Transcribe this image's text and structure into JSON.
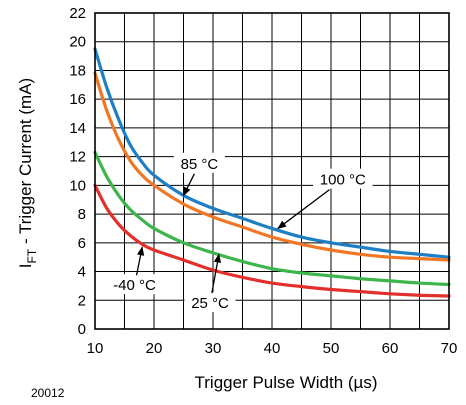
{
  "figure_id": "20012",
  "chart_data": {
    "type": "line",
    "xlabel": "Trigger Pulse Width (µs)",
    "ylabel_main": "I",
    "ylabel_sub": "FT",
    "ylabel_rest": " - Trigger Current (mA)",
    "xlim": [
      10,
      70
    ],
    "ylim": [
      0,
      22
    ],
    "x_ticks": [
      10,
      20,
      30,
      40,
      50,
      60,
      70
    ],
    "y_ticks": [
      0,
      2,
      4,
      6,
      8,
      10,
      12,
      14,
      16,
      18,
      20,
      22
    ],
    "grid": true,
    "series": [
      {
        "color": "#1f7fc4",
        "x": [
          10,
          12,
          14,
          16,
          18,
          20,
          25,
          30,
          35,
          40,
          45,
          50,
          55,
          60,
          65,
          70
        ],
        "y": [
          19.5,
          16.8,
          14.6,
          12.8,
          11.6,
          10.7,
          9.3,
          8.4,
          7.7,
          7.0,
          6.4,
          6.0,
          5.7,
          5.4,
          5.2,
          5.0
        ]
      },
      {
        "color": "#f07824",
        "x": [
          10,
          12,
          14,
          16,
          18,
          20,
          25,
          30,
          35,
          40,
          45,
          50,
          55,
          60,
          65,
          70
        ],
        "y": [
          17.8,
          15.2,
          13.2,
          11.7,
          10.7,
          10.0,
          8.7,
          7.8,
          7.1,
          6.4,
          5.9,
          5.5,
          5.2,
          5.0,
          4.9,
          4.8
        ]
      },
      {
        "color": "#3cb54a",
        "x": [
          10,
          12,
          14,
          16,
          18,
          20,
          25,
          30,
          35,
          40,
          45,
          50,
          55,
          60,
          65,
          70
        ],
        "y": [
          12.3,
          10.6,
          9.3,
          8.3,
          7.6,
          7.0,
          6.0,
          5.3,
          4.7,
          4.2,
          3.9,
          3.7,
          3.5,
          3.35,
          3.2,
          3.1
        ]
      },
      {
        "color": "#e2302d",
        "x": [
          10,
          12,
          14,
          16,
          18,
          20,
          25,
          30,
          35,
          40,
          45,
          50,
          55,
          60,
          65,
          70
        ],
        "y": [
          10.0,
          8.4,
          7.3,
          6.5,
          5.9,
          5.5,
          4.8,
          4.1,
          3.6,
          3.2,
          2.95,
          2.75,
          2.6,
          2.45,
          2.35,
          2.3
        ]
      }
    ],
    "annotations": [
      {
        "text": "85 °C",
        "x": 27.7,
        "y": 11.5,
        "arrow_to": [
          25,
          9.3
        ]
      },
      {
        "text": "100 °C",
        "x": 52.0,
        "y": 10.4,
        "arrow_to": [
          41,
          7.0
        ]
      },
      {
        "text": "-40 °C",
        "x": 16.7,
        "y": 3.05,
        "arrow_to": [
          18,
          5.7
        ]
      },
      {
        "text": "25 °C",
        "x": 29.5,
        "y": 1.8,
        "arrow_to": [
          31,
          5.2
        ]
      }
    ]
  }
}
